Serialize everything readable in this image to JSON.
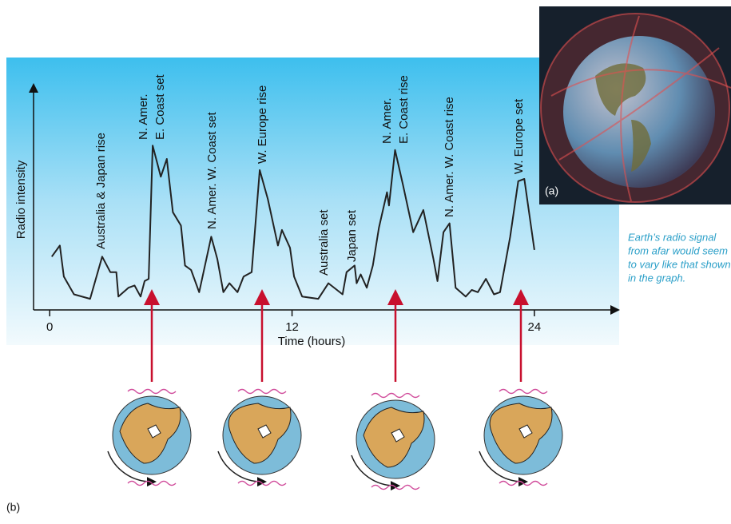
{
  "chart_data": {
    "type": "line",
    "x_label": "Time (hours)",
    "y_label": "Radio intensity",
    "xlim": [
      -0.8,
      28
    ],
    "ylim": [
      0,
      100
    ],
    "xticks": [
      0,
      12,
      24
    ],
    "color": "#222222",
    "x": [
      0.1,
      0.5,
      0.7,
      1.2,
      2.0,
      2.6,
      3.0,
      3.3,
      3.4,
      3.9,
      4.2,
      4.5,
      4.7,
      4.9,
      5.1,
      5.5,
      5.8,
      6.1,
      6.5,
      6.7,
      7.0,
      7.4,
      8.0,
      8.3,
      8.6,
      8.9,
      9.3,
      9.6,
      10.0,
      10.4,
      10.8,
      11.3,
      11.5,
      11.9,
      12.1,
      12.5,
      13.3,
      13.8,
      14.5,
      14.7,
      15.1,
      15.2,
      15.4,
      15.7,
      16.0,
      16.3,
      16.7,
      16.8,
      17.1,
      17.5,
      18.0,
      18.5,
      19.0,
      19.2,
      19.5,
      19.8,
      20.1,
      20.6,
      20.9,
      21.2,
      21.6,
      22.0,
      22.3,
      22.8,
      23.2,
      23.5,
      24.0
    ],
    "values": [
      24,
      29,
      15,
      7,
      5,
      24,
      17,
      17,
      6,
      10,
      11,
      6,
      13,
      14,
      74,
      60,
      68,
      44,
      38,
      20,
      18,
      8,
      33,
      23,
      8,
      12,
      8,
      15,
      17,
      63,
      50,
      29,
      36,
      28,
      15,
      6,
      5,
      12,
      7,
      17,
      20,
      12,
      16,
      10,
      20,
      37,
      53,
      47,
      72,
      56,
      35,
      45,
      23,
      13,
      35,
      39,
      10,
      6,
      9,
      8,
      14,
      7,
      8,
      33,
      58,
      59,
      27
    ],
    "annotations": [
      [
        "Australia & Japan rise"
      ],
      [
        "N. Amer.",
        "E. Coast set"
      ],
      [
        "N. Amer. W. Coast set"
      ],
      [
        "W. Europe rise"
      ],
      [
        "Australia set"
      ],
      [
        "Japan set"
      ],
      [
        "N. Amer.",
        "E. Coast rise"
      ],
      [
        "N. Amer. W. Coast rise"
      ],
      [
        "W. Europe set"
      ]
    ],
    "caption": [
      "Earth’s radio signal",
      "from afar would seem",
      "to vary like that shown",
      "in the graph."
    ],
    "panel_a": "(a)",
    "panel_b": "(b)"
  }
}
